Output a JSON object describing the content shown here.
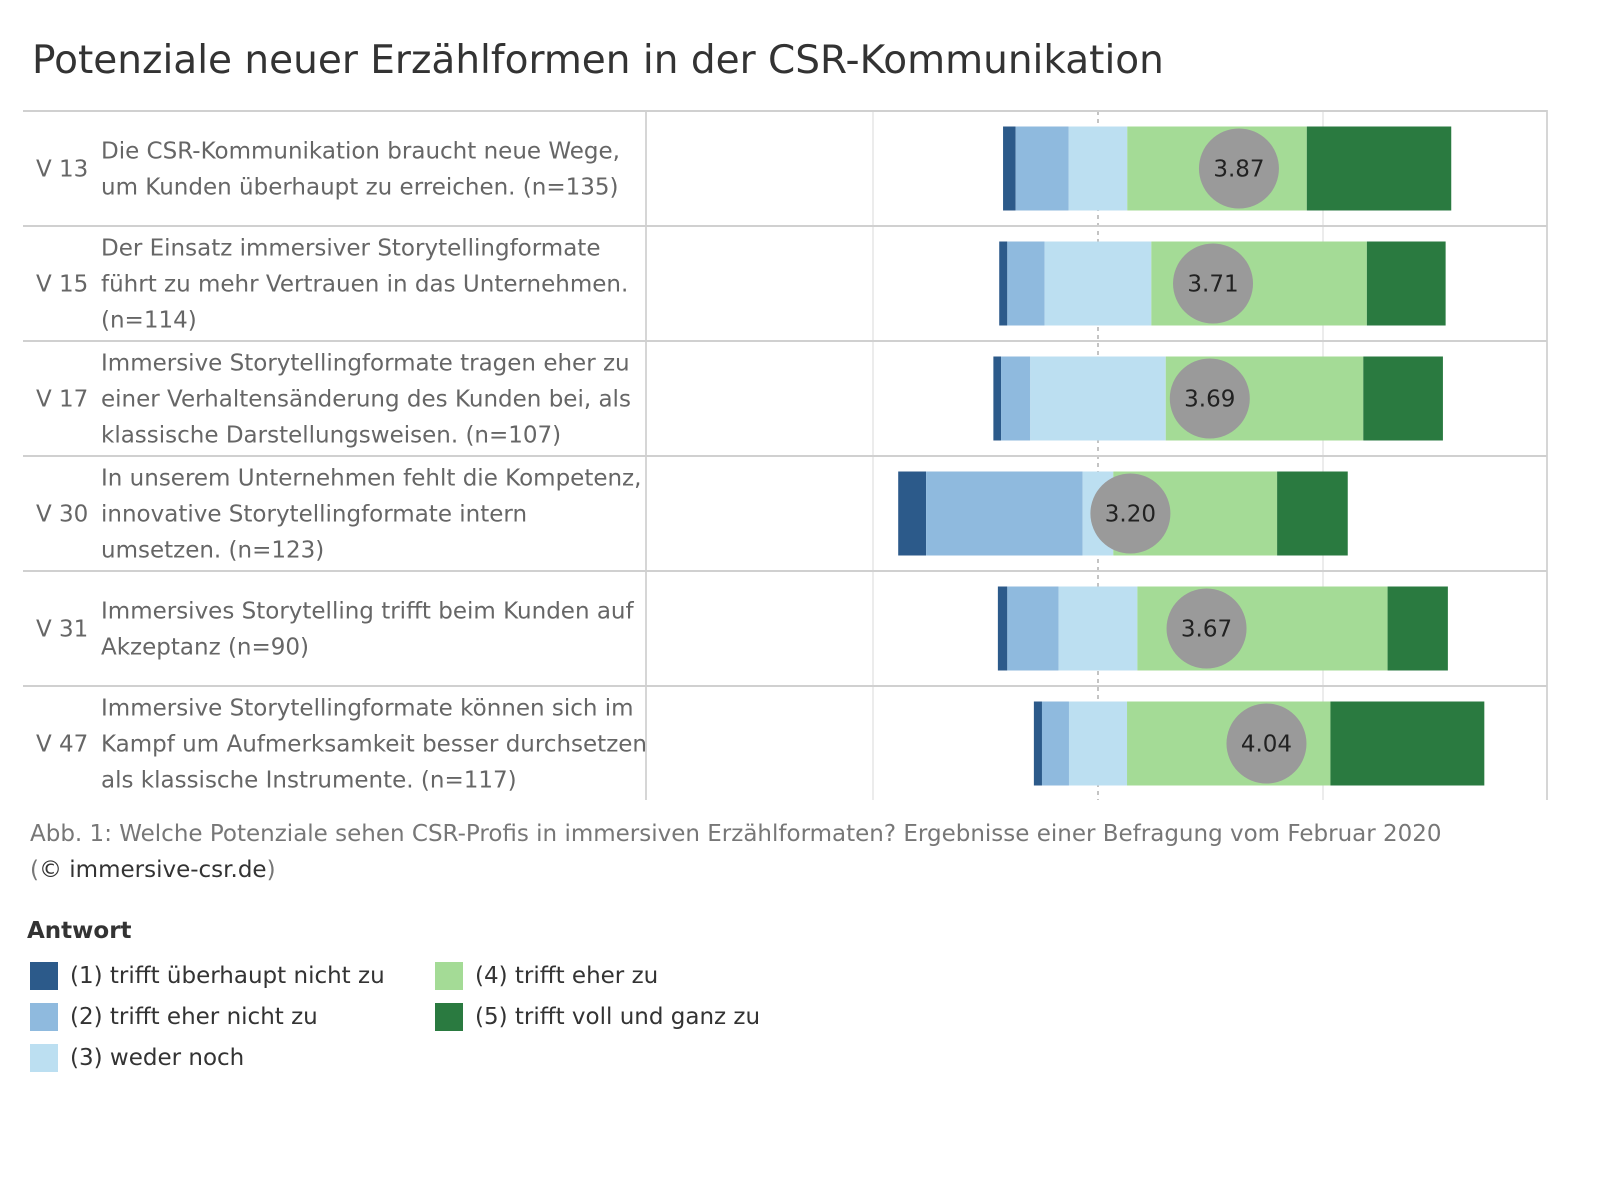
{
  "title": "Potenziale neuer Erzählformen in der CSR-Kommunikation",
  "caption": {
    "line1": "Abb. 1: Welche Potenziale sehen CSR-Profis in immersiven Erzählformaten? Ergebnisse einer Befragung vom Februar 2020",
    "line2_open": "(",
    "line2_source": "© immersive-csr.de",
    "line2_close": ")"
  },
  "legend": {
    "title": "Antwort",
    "items": [
      {
        "label": "(1) trifft überhaupt nicht zu",
        "color": "#2c5a8a"
      },
      {
        "label": "(2) trifft eher nicht zu",
        "color": "#8fbade"
      },
      {
        "label": "(3) weder noch",
        "color": "#bcdff1"
      },
      {
        "label": "(4) trifft eher zu",
        "color": "#a4db96"
      },
      {
        "label": "(5) trifft voll und ganz zu",
        "color": "#2a7a40"
      }
    ]
  },
  "chart_data": {
    "type": "bar",
    "subtype": "diverging-stacked-bar",
    "center_line": "dashed",
    "categories": [
      "V 13",
      "V 15",
      "V 17",
      "V 30",
      "V 31",
      "V 47"
    ],
    "questions": [
      [
        "Die CSR-Kommunikation braucht neue Wege,",
        "um Kunden überhaupt zu erreichen. (n=135)"
      ],
      [
        "Der Einsatz immersiver Storytellingformate",
        "führt zu mehr Vertrauen in das Unternehmen.",
        "(n=114)"
      ],
      [
        "Immersive Storytellingformate tragen eher zu",
        "einer Verhaltensänderung des Kunden bei, als",
        "klassische Darstellungsweisen. (n=107)"
      ],
      [
        "In unserem Unternehmen fehlt die Kompetenz,",
        "innovative Storytellingformate intern",
        "umsetzen. (n=123)"
      ],
      [
        "Immersives Storytelling trifft beim Kunden auf",
        "Akzeptanz (n=90)"
      ],
      [
        "Immersive Storytellingformate können sich im",
        "Kampf um Aufmerksamkeit besser durchsetzen",
        "als klassische Instrumente. (n=117)"
      ]
    ],
    "series": [
      {
        "name": "(1) trifft überhaupt nicht zu",
        "color": "#2c5a8a",
        "values": [
          2.8,
          1.8,
          1.7,
          6.2,
          2.1,
          1.8
        ]
      },
      {
        "name": "(2) trifft eher nicht zu",
        "color": "#8fbade",
        "values": [
          11.8,
          8.3,
          6.5,
          34.8,
          11.4,
          6.0
        ]
      },
      {
        "name": "(3) weder noch",
        "color": "#bcdff1",
        "values": [
          13.0,
          23.7,
          30.1,
          6.8,
          17.5,
          12.9
        ]
      },
      {
        "name": "(4) trifft eher zu",
        "color": "#a4db96",
        "values": [
          39.9,
          47.9,
          43.9,
          36.4,
          55.6,
          45.2
        ]
      },
      {
        "name": "(5) trifft voll und ganz zu",
        "color": "#2a7a40",
        "values": [
          32.1,
          17.5,
          17.7,
          15.7,
          13.4,
          34.2
        ]
      }
    ],
    "averages": [
      "3.87",
      "3.71",
      "3.69",
      "3.20",
      "3.67",
      "4.04"
    ]
  }
}
